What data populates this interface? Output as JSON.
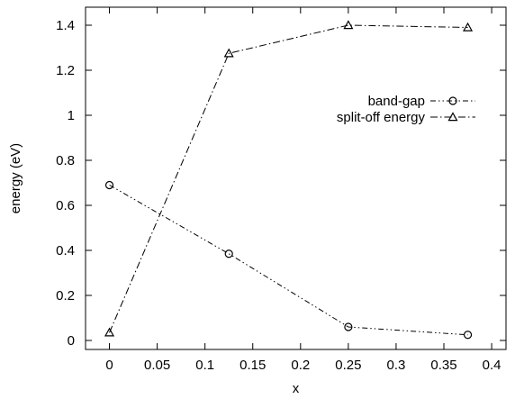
{
  "chart_data": {
    "type": "line",
    "title": "",
    "xlabel": "x",
    "ylabel": "energy (eV)",
    "xlim": [
      -0.025,
      0.415
    ],
    "ylim": [
      -0.04,
      1.48
    ],
    "xticks": [
      0,
      0.05,
      0.1,
      0.15,
      0.2,
      0.25,
      0.3,
      0.35,
      0.4
    ],
    "xtick_labels": [
      "0",
      "0.05",
      "0.1",
      "0.15",
      "0.2",
      "0.25",
      "0.3",
      "0.35",
      "0.4"
    ],
    "yticks": [
      0,
      0.2,
      0.4,
      0.6,
      0.8,
      1.0,
      1.2,
      1.4
    ],
    "ytick_labels": [
      "0",
      "0.2",
      "0.4",
      "0.6",
      "0.8",
      "1",
      "1.2",
      "1.4"
    ],
    "grid": false,
    "legend_position": "top-right",
    "series": [
      {
        "name": "band-gap",
        "marker": "circle",
        "line_style": "dash-dot-dot",
        "color": "#000000",
        "x": [
          0,
          0.125,
          0.25,
          0.375
        ],
        "y": [
          0.69,
          0.385,
          0.06,
          0.025
        ]
      },
      {
        "name": "split-off energy",
        "marker": "triangle",
        "line_style": "dash-dot",
        "color": "#000000",
        "x": [
          0,
          0.125,
          0.25,
          0.375
        ],
        "y": [
          0.035,
          1.275,
          1.4,
          1.39
        ]
      }
    ]
  }
}
